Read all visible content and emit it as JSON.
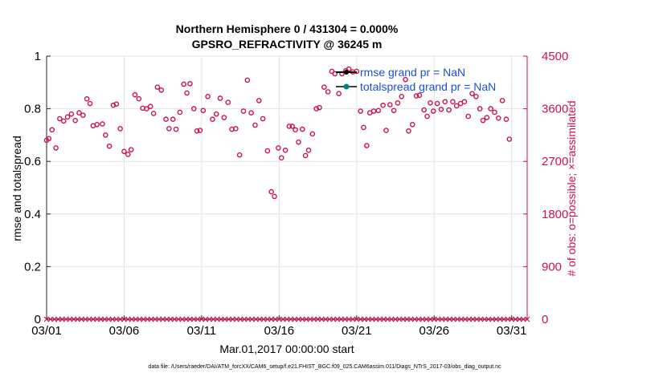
{
  "chart_data": {
    "type": "scatter",
    "title_line1": "Northern Hemisphere 0 / 431304 = 0.000%",
    "title_line2": "GPSRO_REFRACTIVITY @ 36245 m",
    "xlabel": "Mar.01,2017 00:00:00 start",
    "ylabel_left": "rmse and totalspread",
    "ylabel_right": "# of obs: o=possible; ×=assimilated",
    "xlim": [
      1,
      32
    ],
    "ylim_left": [
      0,
      1
    ],
    "ylim_right": [
      0,
      4500
    ],
    "x_ticks": [
      {
        "value": 1,
        "label": "03/01"
      },
      {
        "value": 6,
        "label": "03/06"
      },
      {
        "value": 11,
        "label": "03/11"
      },
      {
        "value": 16,
        "label": "03/16"
      },
      {
        "value": 21,
        "label": "03/21"
      },
      {
        "value": 26,
        "label": "03/26"
      },
      {
        "value": 31,
        "label": "03/31"
      }
    ],
    "y_ticks_left": [
      {
        "value": 0,
        "label": "0"
      },
      {
        "value": 0.2,
        "label": "0.2"
      },
      {
        "value": 0.4,
        "label": "0.4"
      },
      {
        "value": 0.6,
        "label": "0.6"
      },
      {
        "value": 0.8,
        "label": "0.8"
      },
      {
        "value": 1,
        "label": "1"
      }
    ],
    "y_ticks_right": [
      {
        "value": 0,
        "label": "0"
      },
      {
        "value": 900,
        "label": "900"
      },
      {
        "value": 1800,
        "label": "1800"
      },
      {
        "value": 2700,
        "label": "2700"
      },
      {
        "value": 3600,
        "label": "3600"
      },
      {
        "value": 4500,
        "label": "4500"
      }
    ],
    "grid": true,
    "legend": [
      {
        "name": "rmse grand pr = NaN",
        "color": "#000000"
      },
      {
        "name": "totalspread grand pr = NaN",
        "color": "#008080"
      }
    ],
    "legend_position": "top-right",
    "series": [
      {
        "name": "obs possible",
        "marker": "circle",
        "color": "#cc1155",
        "points": [
          [
            1.0,
            3060
          ],
          [
            1.15,
            3090
          ],
          [
            1.35,
            3240
          ],
          [
            1.6,
            2930
          ],
          [
            1.85,
            3430
          ],
          [
            2.1,
            3390
          ],
          [
            2.35,
            3460
          ],
          [
            2.6,
            3510
          ],
          [
            2.85,
            3400
          ],
          [
            3.1,
            3530
          ],
          [
            3.35,
            3490
          ],
          [
            3.6,
            3770
          ],
          [
            3.8,
            3690
          ],
          [
            4.0,
            3310
          ],
          [
            4.25,
            3330
          ],
          [
            4.6,
            3340
          ],
          [
            4.8,
            3150
          ],
          [
            5.05,
            2960
          ],
          [
            5.3,
            3660
          ],
          [
            5.5,
            3680
          ],
          [
            5.75,
            3260
          ],
          [
            6.0,
            2870
          ],
          [
            6.25,
            2820
          ],
          [
            6.45,
            2900
          ],
          [
            6.7,
            3840
          ],
          [
            6.95,
            3770
          ],
          [
            7.2,
            3610
          ],
          [
            7.45,
            3600
          ],
          [
            7.7,
            3640
          ],
          [
            7.9,
            3520
          ],
          [
            8.15,
            3970
          ],
          [
            8.4,
            3920
          ],
          [
            8.7,
            3420
          ],
          [
            8.9,
            3260
          ],
          [
            9.15,
            3420
          ],
          [
            9.35,
            3250
          ],
          [
            9.6,
            3540
          ],
          [
            9.85,
            4020
          ],
          [
            10.05,
            3870
          ],
          [
            10.25,
            4030
          ],
          [
            10.5,
            3600
          ],
          [
            10.7,
            3220
          ],
          [
            10.9,
            3230
          ],
          [
            11.1,
            3570
          ],
          [
            11.4,
            3810
          ],
          [
            11.7,
            3420
          ],
          [
            11.95,
            3510
          ],
          [
            12.2,
            3780
          ],
          [
            12.45,
            3450
          ],
          [
            12.7,
            3710
          ],
          [
            12.95,
            3250
          ],
          [
            13.2,
            3260
          ],
          [
            13.45,
            2810
          ],
          [
            13.7,
            3560
          ],
          [
            13.95,
            4090
          ],
          [
            14.2,
            3530
          ],
          [
            14.45,
            3320
          ],
          [
            14.7,
            3740
          ],
          [
            14.95,
            3430
          ],
          [
            15.25,
            2880
          ],
          [
            15.5,
            2180
          ],
          [
            15.7,
            2100
          ],
          [
            15.95,
            2930
          ],
          [
            16.15,
            2760
          ],
          [
            16.4,
            2890
          ],
          [
            16.65,
            3300
          ],
          [
            16.85,
            3300
          ],
          [
            17.05,
            3240
          ],
          [
            17.25,
            3030
          ],
          [
            17.5,
            3250
          ],
          [
            17.7,
            2800
          ],
          [
            17.9,
            2890
          ],
          [
            18.15,
            3170
          ],
          [
            18.4,
            3600
          ],
          [
            18.6,
            3620
          ],
          [
            18.9,
            3970
          ],
          [
            19.15,
            3890
          ],
          [
            19.4,
            4240
          ],
          [
            19.6,
            4200
          ],
          [
            19.85,
            3860
          ],
          [
            20.05,
            4200
          ],
          [
            20.3,
            4250
          ],
          [
            20.5,
            4280
          ],
          [
            20.75,
            4230
          ],
          [
            21.0,
            4240
          ],
          [
            21.25,
            3560
          ],
          [
            21.45,
            3280
          ],
          [
            21.65,
            2970
          ],
          [
            21.85,
            3530
          ],
          [
            22.1,
            3560
          ],
          [
            22.4,
            3570
          ],
          [
            22.7,
            3660
          ],
          [
            22.9,
            3230
          ],
          [
            23.15,
            3670
          ],
          [
            23.4,
            3570
          ],
          [
            23.65,
            3700
          ],
          [
            23.9,
            3810
          ],
          [
            24.15,
            4100
          ],
          [
            24.35,
            3220
          ],
          [
            24.6,
            3330
          ],
          [
            24.85,
            3820
          ],
          [
            25.05,
            3830
          ],
          [
            25.35,
            3580
          ],
          [
            25.55,
            3470
          ],
          [
            25.75,
            3700
          ],
          [
            25.95,
            3560
          ],
          [
            26.2,
            3690
          ],
          [
            26.45,
            3590
          ],
          [
            26.7,
            3720
          ],
          [
            26.95,
            3580
          ],
          [
            27.2,
            3720
          ],
          [
            27.45,
            3650
          ],
          [
            27.7,
            3690
          ],
          [
            27.95,
            3720
          ],
          [
            28.2,
            3470
          ],
          [
            28.45,
            3860
          ],
          [
            28.7,
            3810
          ],
          [
            28.95,
            3600
          ],
          [
            29.15,
            3400
          ],
          [
            29.4,
            3450
          ],
          [
            29.65,
            3600
          ],
          [
            29.9,
            3540
          ],
          [
            30.15,
            3440
          ],
          [
            30.4,
            3740
          ],
          [
            30.65,
            3420
          ],
          [
            30.85,
            3080
          ]
        ]
      },
      {
        "name": "obs assimilated",
        "marker": "x",
        "color": "#cc1155",
        "points_y": 0,
        "x_start": 1,
        "x_end": 32,
        "count": 125
      }
    ]
  },
  "footer": "data file: /Users/raeder/DAI/ATM_forcXX/CAM6_setup/f.e21.FHIST_BGC.f09_025.CAM6assim.011/Diags_NTrS_2017-03/obs_diag_output.nc"
}
